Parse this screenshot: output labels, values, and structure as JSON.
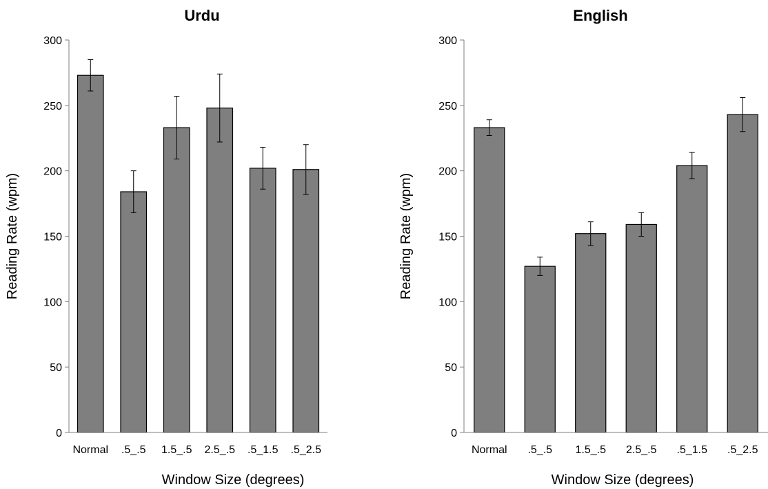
{
  "chart_data": [
    {
      "type": "bar",
      "title": "Urdu",
      "xlabel": "Window Size (degrees)",
      "ylabel": "Reading Rate (wpm)",
      "ylim": [
        0,
        300
      ],
      "yticks": [
        0,
        50,
        100,
        150,
        200,
        250,
        300
      ],
      "grid": false,
      "categories": [
        "Normal",
        ".5_.5",
        "1.5_.5",
        "2.5_.5",
        ".5_1.5",
        ".5_2.5"
      ],
      "values": [
        273,
        184,
        233,
        248,
        202,
        201
      ],
      "errors": [
        12,
        16,
        24,
        26,
        16,
        19
      ],
      "bar_color": "#7f7f7f"
    },
    {
      "type": "bar",
      "title": "English",
      "xlabel": "Window Size (degrees)",
      "ylabel": "Reading Rate (wpm)",
      "ylim": [
        0,
        300
      ],
      "yticks": [
        0,
        50,
        100,
        150,
        200,
        250,
        300
      ],
      "grid": false,
      "categories": [
        "Normal",
        ".5_.5",
        "1.5_.5",
        "2.5_.5",
        ".5_1.5",
        ".5_2.5"
      ],
      "values": [
        233,
        127,
        152,
        159,
        204,
        243
      ],
      "errors": [
        6,
        7,
        9,
        9,
        10,
        13
      ],
      "bar_color": "#7f7f7f"
    }
  ]
}
